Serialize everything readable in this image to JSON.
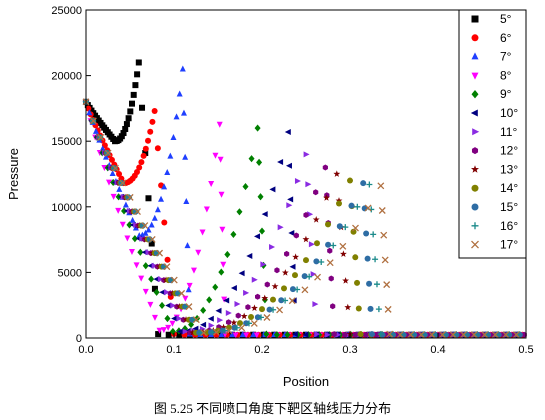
{
  "caption": "图 5.25 不同喷口角度下靶区轴线压力分布",
  "chart_data": {
    "type": "scatter",
    "xlabel": "Position",
    "ylabel": "Pressure",
    "xlim": [
      0.0,
      0.5
    ],
    "ylim": [
      0,
      25000
    ],
    "xticks": [
      "0.0",
      "0.1",
      "0.2",
      "0.3",
      "0.4",
      "0.5"
    ],
    "yticks": [
      "0",
      "5000",
      "10000",
      "15000",
      "20000",
      "25000"
    ],
    "grid": false,
    "legend_position": "top-right",
    "series": [
      {
        "name": "5°",
        "color": "#000000",
        "marker": "square",
        "peak": [
          0.06,
          21000
        ],
        "drop": 0.082,
        "min": 15000
      },
      {
        "name": "6°",
        "color": "#ff0000",
        "marker": "circle",
        "peak": [
          0.078,
          17300
        ],
        "drop": 0.1,
        "min": 11800
      },
      {
        "name": "7°",
        "color": "#1f3fff",
        "marker": "triangle-up",
        "peak": [
          0.11,
          20500
        ],
        "drop": 0.118,
        "min": 7800
      },
      {
        "name": "8°",
        "color": "#ff00ff",
        "marker": "triangle-down",
        "peak": [
          0.152,
          16300
        ],
        "drop": 0.158,
        "min": 600
      },
      {
        "name": "9°",
        "color": "#008000",
        "marker": "diamond",
        "peak": [
          0.195,
          16000
        ],
        "drop": 0.205,
        "min": 500
      },
      {
        "name": "10°",
        "color": "#000080",
        "marker": "triangle-left",
        "peak": [
          0.23,
          15700
        ],
        "drop": 0.238,
        "min": 500
      },
      {
        "name": "11°",
        "color": "#8a2be2",
        "marker": "triangle-right",
        "peak": [
          0.25,
          14000
        ],
        "drop": 0.262,
        "min": 500
      },
      {
        "name": "12°",
        "color": "#800080",
        "marker": "hexagon",
        "peak": [
          0.272,
          13000
        ],
        "drop": 0.282,
        "min": 400
      },
      {
        "name": "13°",
        "color": "#800000",
        "marker": "star",
        "peak": [
          0.285,
          12500
        ],
        "drop": 0.3,
        "min": 400
      },
      {
        "name": "14°",
        "color": "#808000",
        "marker": "circle",
        "peak": [
          0.3,
          12000
        ],
        "drop": 0.312,
        "min": 400
      },
      {
        "name": "15°",
        "color": "#2e6da4",
        "marker": "circle",
        "peak": [
          0.315,
          11800
        ],
        "drop": 0.325,
        "min": 400
      },
      {
        "name": "16°",
        "color": "#1a8a8a",
        "marker": "plus",
        "peak": [
          0.322,
          11700
        ],
        "drop": 0.335,
        "min": 400
      },
      {
        "name": "17°",
        "color": "#b07040",
        "marker": "cross",
        "peak": [
          0.335,
          11600
        ],
        "drop": 0.345,
        "min": 400
      }
    ]
  }
}
